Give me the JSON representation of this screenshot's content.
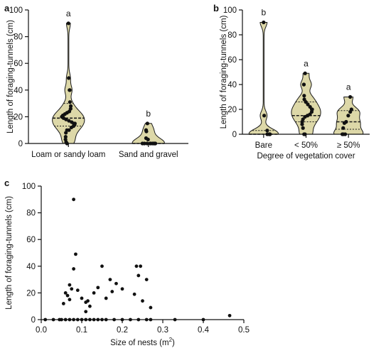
{
  "colors": {
    "violin_fill": "#ddd8a8",
    "violin_stroke": "#1a1a1a",
    "point": "#111111",
    "axis": "#111111"
  },
  "chart_data": [
    {
      "panel": "a",
      "type": "violin",
      "ylabel": "Length of foraging-tunnels (cm)",
      "xlabel": "",
      "ylim": [
        0,
        100
      ],
      "yticks": [
        0,
        20,
        40,
        60,
        80,
        100
      ],
      "categories": [
        "Loam or sandy loam",
        "Sand and gravel"
      ],
      "significance": [
        "a",
        "b"
      ],
      "quartiles": [
        [
          13,
          19,
          30
        ],
        [
          0,
          0,
          0
        ]
      ],
      "points": [
        [
          90,
          49,
          40,
          40,
          31,
          28,
          26,
          24,
          23,
          22,
          21,
          20,
          20,
          19,
          18,
          17,
          16,
          15,
          15,
          14,
          13,
          12,
          10,
          10,
          8,
          5,
          3,
          1,
          0
        ],
        [
          15,
          10,
          10,
          9,
          4,
          3,
          0,
          0,
          0,
          0,
          0,
          0,
          0,
          0,
          0,
          0
        ]
      ]
    },
    {
      "panel": "b",
      "type": "violin",
      "ylabel": "Length of foraging-tunnels (cm)",
      "xlabel": "Degree of vegetation cover",
      "ylim": [
        0,
        100
      ],
      "yticks": [
        0,
        20,
        40,
        60,
        80,
        100
      ],
      "categories": [
        "Bare",
        "< 50%",
        "≥ 50%"
      ],
      "significance": [
        "b",
        "a",
        "a"
      ],
      "quartiles": [
        [
          0,
          0,
          3
        ],
        [
          10,
          15,
          26
        ],
        [
          4,
          10,
          19
        ]
      ],
      "points": [
        [
          90,
          15,
          3,
          0,
          0,
          0,
          0
        ],
        [
          49,
          40,
          40,
          31,
          28,
          26,
          24,
          22,
          20,
          20,
          18,
          16,
          15,
          14,
          12,
          10,
          8,
          5,
          0,
          0
        ],
        [
          30,
          20,
          18,
          15,
          10,
          9,
          5,
          0,
          0,
          0
        ]
      ]
    },
    {
      "panel": "c",
      "type": "scatter",
      "ylabel": "Length of foraging-tunnels (cm)",
      "xlabel_main": "Size of nests (m",
      "xlabel_sup": "2",
      "xlabel_end": ")",
      "xlim": [
        0,
        0.5
      ],
      "ylim": [
        0,
        100
      ],
      "xticks": [
        "0.0",
        "0.1",
        "0.2",
        "0.3",
        "0.4",
        "0.5"
      ],
      "yticks": [
        0,
        20,
        40,
        60,
        80,
        100
      ],
      "points": [
        [
          0.08,
          90
        ],
        [
          0.085,
          49
        ],
        [
          0.08,
          38
        ],
        [
          0.075,
          23
        ],
        [
          0.07,
          26
        ],
        [
          0.06,
          20
        ],
        [
          0.065,
          18
        ],
        [
          0.07,
          15
        ],
        [
          0.09,
          22
        ],
        [
          0.055,
          12
        ],
        [
          0.1,
          16
        ],
        [
          0.11,
          13
        ],
        [
          0.115,
          14
        ],
        [
          0.11,
          6
        ],
        [
          0.12,
          10
        ],
        [
          0.13,
          20
        ],
        [
          0.14,
          24
        ],
        [
          0.15,
          40
        ],
        [
          0.16,
          16
        ],
        [
          0.17,
          30
        ],
        [
          0.175,
          21
        ],
        [
          0.185,
          27
        ],
        [
          0.2,
          23
        ],
        [
          0.23,
          19
        ],
        [
          0.235,
          40
        ],
        [
          0.245,
          40
        ],
        [
          0.24,
          33
        ],
        [
          0.26,
          30
        ],
        [
          0.27,
          9
        ],
        [
          0.25,
          14
        ],
        [
          0.465,
          3
        ],
        [
          0.01,
          0
        ],
        [
          0.03,
          0
        ],
        [
          0.045,
          0
        ],
        [
          0.05,
          0
        ],
        [
          0.06,
          0
        ],
        [
          0.07,
          0
        ],
        [
          0.08,
          0
        ],
        [
          0.09,
          0
        ],
        [
          0.1,
          0
        ],
        [
          0.11,
          0
        ],
        [
          0.12,
          0
        ],
        [
          0.13,
          0
        ],
        [
          0.14,
          0
        ],
        [
          0.15,
          0
        ],
        [
          0.16,
          0
        ],
        [
          0.18,
          0
        ],
        [
          0.2,
          0
        ],
        [
          0.22,
          0
        ],
        [
          0.24,
          0
        ],
        [
          0.26,
          0
        ],
        [
          0.27,
          0
        ],
        [
          0.33,
          0
        ],
        [
          0.4,
          0
        ]
      ]
    }
  ]
}
